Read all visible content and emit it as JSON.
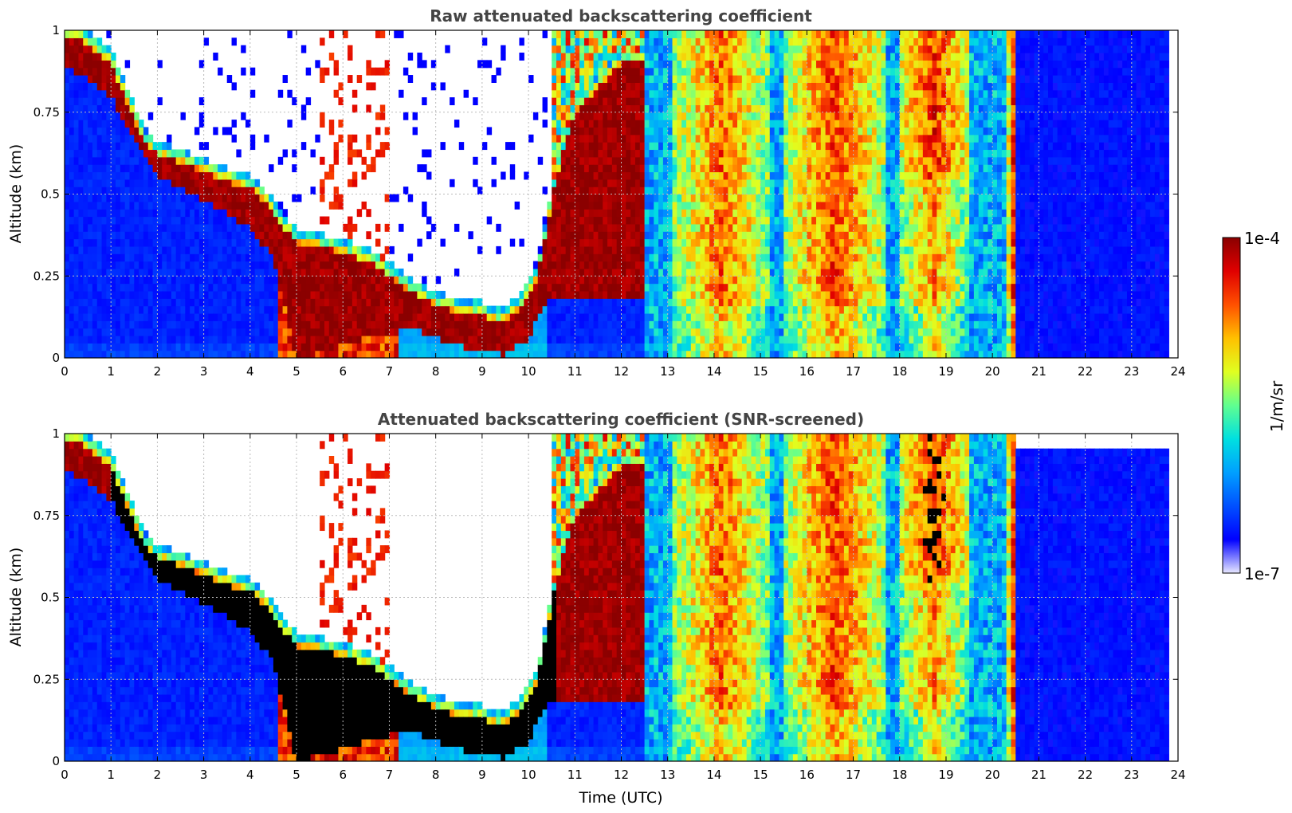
{
  "chart_data": [
    {
      "type": "heatmap",
      "title": "Raw attenuated backscattering coefficient",
      "xlabel": "",
      "ylabel": "Altitude (km)",
      "xlim": [
        0,
        24
      ],
      "ylim": [
        0,
        1
      ],
      "x_ticks": [
        "0",
        "1",
        "2",
        "3",
        "4",
        "5",
        "6",
        "7",
        "8",
        "9",
        "10",
        "11",
        "12",
        "13",
        "14",
        "15",
        "16",
        "17",
        "18",
        "19",
        "20",
        "21",
        "22",
        "23",
        "24"
      ],
      "y_ticks": [
        "0",
        "0.25",
        "0.5",
        "0.75",
        "1"
      ],
      "grid": true,
      "screened": false,
      "strong_layer_top_km": [
        [
          0.0,
          0.98
        ],
        [
          0.5,
          0.96
        ],
        [
          1.0,
          0.9
        ],
        [
          1.3,
          0.8
        ],
        [
          1.7,
          0.66
        ],
        [
          2.0,
          0.62
        ],
        [
          2.5,
          0.6
        ],
        [
          3.0,
          0.57
        ],
        [
          3.5,
          0.54
        ],
        [
          4.0,
          0.52
        ],
        [
          4.3,
          0.48
        ],
        [
          4.6,
          0.42
        ],
        [
          5.0,
          0.35
        ],
        [
          5.5,
          0.34
        ],
        [
          6.0,
          0.32
        ],
        [
          6.5,
          0.3
        ],
        [
          7.0,
          0.25
        ],
        [
          7.5,
          0.2
        ],
        [
          8.0,
          0.16
        ],
        [
          8.5,
          0.14
        ],
        [
          9.0,
          0.13
        ],
        [
          9.4,
          0.11
        ],
        [
          9.8,
          0.15
        ],
        [
          10.2,
          0.25
        ],
        [
          10.6,
          0.55
        ],
        [
          11.0,
          0.75
        ],
        [
          12.0,
          0.9
        ]
      ],
      "strong_layer_bottom_km": [
        [
          0.0,
          0.9
        ],
        [
          1.0,
          0.8
        ],
        [
          1.5,
          0.66
        ],
        [
          2.0,
          0.56
        ],
        [
          3.0,
          0.48
        ],
        [
          4.0,
          0.4
        ],
        [
          4.5,
          0.3
        ],
        [
          5.0,
          0.0
        ],
        [
          7.0,
          0.08
        ],
        [
          7.5,
          0.09
        ],
        [
          8.0,
          0.06
        ],
        [
          8.5,
          0.04
        ],
        [
          9.0,
          0.02
        ],
        [
          9.5,
          0.01
        ],
        [
          10.0,
          0.06
        ],
        [
          10.4,
          0.18
        ]
      ]
    },
    {
      "type": "heatmap",
      "title": "Attenuated backscattering coefficient (SNR-screened)",
      "xlabel": "Time (UTC)",
      "ylabel": "Altitude (km)",
      "xlim": [
        0,
        24
      ],
      "ylim": [
        0,
        1
      ],
      "x_ticks": [
        "0",
        "1",
        "2",
        "3",
        "4",
        "5",
        "6",
        "7",
        "8",
        "9",
        "10",
        "11",
        "12",
        "13",
        "14",
        "15",
        "16",
        "17",
        "18",
        "19",
        "20",
        "21",
        "22",
        "23",
        "24"
      ],
      "y_ticks": [
        "0",
        "0.25",
        "0.5",
        "0.75",
        "1"
      ],
      "grid": true,
      "screened": true
    }
  ],
  "colorbar": {
    "label": "1/m/sr",
    "min_label": "1e-7",
    "max_label": "1e-4",
    "scale": "log",
    "colors": [
      "#e8e8ff",
      "#0000ff",
      "#0050ff",
      "#00a0ff",
      "#00e0e0",
      "#60ff90",
      "#e0ff20",
      "#ffc000",
      "#ff5000",
      "#e00000",
      "#8b0000"
    ]
  }
}
